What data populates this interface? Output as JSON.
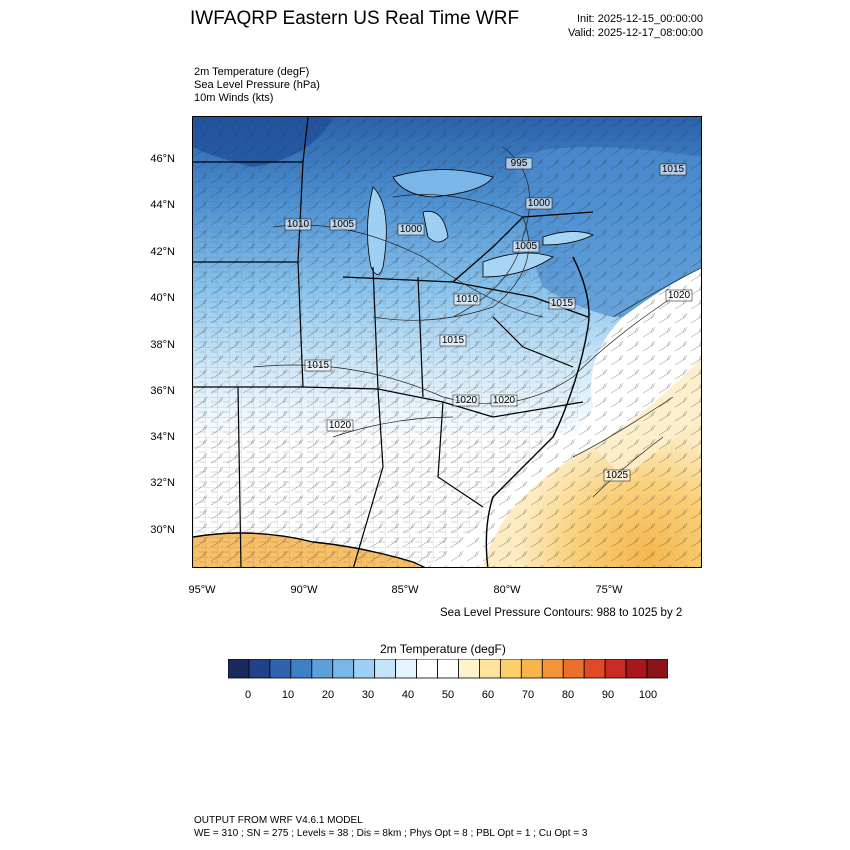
{
  "header": {
    "title": "IWFAQRP Eastern US Real Time WRF",
    "init": "Init: 2025-12-15_00:00:00",
    "valid": "Valid: 2025-12-17_08:00:00"
  },
  "fields": [
    "2m Temperature   (degF)",
    "Sea Level Pressure   (hPa)",
    "10m Winds   (kts)"
  ],
  "map": {
    "lat_labels": [
      "46°N",
      "44°N",
      "42°N",
      "40°N",
      "38°N",
      "36°N",
      "34°N",
      "32°N",
      "30°N"
    ],
    "lon_labels": [
      "95°W",
      "90°W",
      "85°W",
      "80°W",
      "75°W"
    ],
    "slp_labels": [
      "995",
      "1000",
      "1015",
      "1010",
      "1005",
      "1000",
      "1005",
      "1010",
      "1015",
      "1020",
      "1015",
      "1015",
      "1020",
      "1020",
      "1020",
      "1025"
    ],
    "colors": {
      "cold": "#2a5fa8",
      "cool": "#88c2ec",
      "white": "#ffffff",
      "warm": "#f8c060"
    }
  },
  "contour_note": "Sea Level Pressure Contours: 988 to 1025 by 2",
  "colorbar": {
    "title": "2m Temperature  (degF)",
    "labels": [
      "0",
      "10",
      "20",
      "30",
      "40",
      "50",
      "60",
      "70",
      "80",
      "90",
      "100"
    ],
    "colors": [
      "#1b2a5e",
      "#23418b",
      "#2f63b0",
      "#3e80c6",
      "#5b9fdb",
      "#7ab7e8",
      "#9fd0f3",
      "#c3e4f8",
      "#e4f3fc",
      "#ffffff",
      "#ffffff",
      "#fff3cc",
      "#fde39b",
      "#fbcf6a",
      "#f8b64a",
      "#f39438",
      "#ec6f2d",
      "#e04a26",
      "#c92a22",
      "#a8171e",
      "#8a1419"
    ]
  },
  "footer": {
    "line1": "OUTPUT FROM WRF V4.6.1 MODEL",
    "line2": "WE = 310 ; SN = 275 ; Levels = 38 ; Dis = 8km ; Phys Opt = 8 ; PBL Opt = 1 ; Cu Opt = 3"
  }
}
